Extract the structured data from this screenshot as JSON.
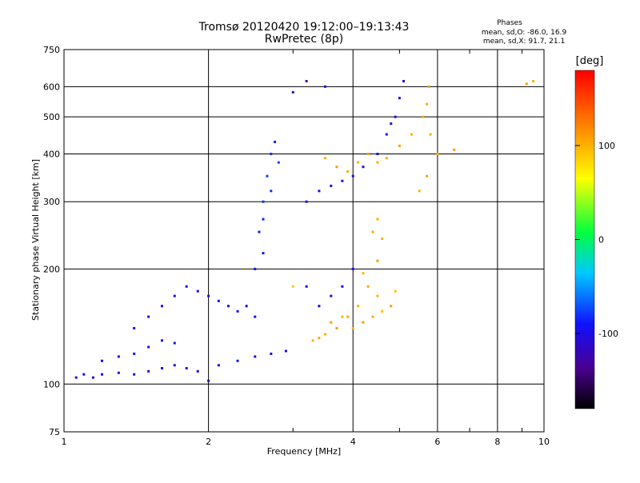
{
  "chart_data": {
    "type": "scatter",
    "title": "Tromsø 20120420 19:12:00–19:13:43",
    "subtitle": "RwPretec (8p)",
    "xlabel": "Frequency [MHz]",
    "ylabel": "Stationary phase Virtual Height [km]",
    "x_scale": "log",
    "y_scale": "log",
    "xlim": [
      1,
      10
    ],
    "ylim": [
      75,
      750
    ],
    "x_ticks": [
      1,
      2,
      4,
      6,
      8,
      10
    ],
    "y_ticks": [
      75,
      100,
      200,
      300,
      400,
      500,
      600,
      750
    ],
    "grid": true,
    "stats": {
      "heading": "Phases",
      "line_o": "mean, sd,O: -86.0, 16.9",
      "line_x": "mean, sd,X:  91.7, 21.1"
    },
    "colorbar": {
      "label": "[deg]",
      "ticks": [
        100,
        0,
        -100
      ],
      "range": [
        -180,
        180
      ]
    },
    "series": [
      {
        "values": [
          [
            1.06,
            104,
            -110
          ],
          [
            1.1,
            106,
            -105
          ],
          [
            1.15,
            104,
            -100
          ],
          [
            1.2,
            106,
            -95
          ],
          [
            1.3,
            107,
            -100
          ],
          [
            1.4,
            106,
            -105
          ],
          [
            1.5,
            108,
            -100
          ],
          [
            1.6,
            110,
            -95
          ],
          [
            1.7,
            112,
            -100
          ],
          [
            1.8,
            110,
            -105
          ],
          [
            1.9,
            108,
            -100
          ],
          [
            2.0,
            102,
            -110
          ],
          [
            1.2,
            115,
            -100
          ],
          [
            1.3,
            118,
            -95
          ],
          [
            1.4,
            120,
            -90
          ],
          [
            1.5,
            125,
            -95
          ],
          [
            1.6,
            130,
            -100
          ],
          [
            1.7,
            128,
            -95
          ],
          [
            1.4,
            140,
            -100
          ],
          [
            1.5,
            150,
            -95
          ],
          [
            1.6,
            160,
            -100
          ],
          [
            1.7,
            170,
            -95
          ],
          [
            1.8,
            180,
            -100
          ],
          [
            1.9,
            175,
            -95
          ],
          [
            2.0,
            170,
            -100
          ],
          [
            2.1,
            165,
            -95
          ],
          [
            2.2,
            160,
            -100
          ],
          [
            2.3,
            155,
            -95
          ],
          [
            2.4,
            160,
            -90
          ],
          [
            2.5,
            150,
            -95
          ],
          [
            2.1,
            112,
            -100
          ],
          [
            2.3,
            115,
            -95
          ],
          [
            2.5,
            118,
            -100
          ],
          [
            2.7,
            120,
            -95
          ],
          [
            2.9,
            122,
            -100
          ],
          [
            2.5,
            200,
            -90
          ],
          [
            2.55,
            250,
            -85
          ],
          [
            2.6,
            300,
            -80
          ],
          [
            2.65,
            350,
            -75
          ],
          [
            2.7,
            400,
            -80
          ],
          [
            2.75,
            430,
            -85
          ],
          [
            2.6,
            220,
            -90
          ],
          [
            2.6,
            270,
            -85
          ],
          [
            2.7,
            320,
            -80
          ],
          [
            2.8,
            380,
            -75
          ],
          [
            3.2,
            300,
            -100
          ],
          [
            3.4,
            320,
            -95
          ],
          [
            3.6,
            330,
            -100
          ],
          [
            3.8,
            340,
            -95
          ],
          [
            4.0,
            350,
            -100
          ],
          [
            4.2,
            370,
            -95
          ],
          [
            3.4,
            160,
            -100
          ],
          [
            3.6,
            170,
            -95
          ],
          [
            3.8,
            180,
            -100
          ],
          [
            4.0,
            200,
            -95
          ],
          [
            3.2,
            180,
            -100
          ],
          [
            4.5,
            400,
            -100
          ],
          [
            4.7,
            450,
            -95
          ],
          [
            4.9,
            500,
            -100
          ],
          [
            5.0,
            560,
            -95
          ],
          [
            5.1,
            620,
            -100
          ],
          [
            4.8,
            480,
            -95
          ],
          [
            3.2,
            620,
            -130
          ],
          [
            3.0,
            580,
            -120
          ],
          [
            3.5,
            600,
            -110
          ]
        ]
      },
      {
        "values": [
          [
            3.5,
            390,
            100
          ],
          [
            3.7,
            370,
            110
          ],
          [
            3.9,
            360,
            105
          ],
          [
            4.1,
            380,
            100
          ],
          [
            4.3,
            400,
            110
          ],
          [
            4.5,
            380,
            100
          ],
          [
            4.7,
            390,
            105
          ],
          [
            5.0,
            420,
            110
          ],
          [
            5.3,
            450,
            100
          ],
          [
            5.6,
            500,
            105
          ],
          [
            5.7,
            540,
            100
          ],
          [
            5.75,
            600,
            110
          ],
          [
            5.8,
            450,
            100
          ],
          [
            5.7,
            350,
            105
          ],
          [
            5.5,
            320,
            100
          ],
          [
            4.0,
            140,
            100
          ],
          [
            4.2,
            145,
            110
          ],
          [
            4.4,
            150,
            105
          ],
          [
            4.6,
            155,
            100
          ],
          [
            4.8,
            160,
            110
          ],
          [
            4.5,
            170,
            100
          ],
          [
            4.3,
            180,
            105
          ],
          [
            4.2,
            195,
            100
          ],
          [
            4.5,
            210,
            110
          ],
          [
            4.6,
            240,
            100
          ],
          [
            3.9,
            150,
            105
          ],
          [
            4.1,
            160,
            100
          ],
          [
            3.7,
            140,
            110
          ],
          [
            3.5,
            135,
            100
          ],
          [
            3.4,
            132,
            105
          ],
          [
            3.3,
            130,
            100
          ],
          [
            3.6,
            145,
            110
          ],
          [
            3.8,
            150,
            100
          ],
          [
            4.4,
            250,
            105
          ],
          [
            4.5,
            270,
            100
          ],
          [
            6.5,
            410,
            110
          ],
          [
            6.0,
            400,
            100
          ],
          [
            9.2,
            610,
            110
          ],
          [
            9.5,
            620,
            100
          ],
          [
            3.0,
            180,
            90
          ],
          [
            4.6,
            155,
            90
          ],
          [
            4.9,
            175,
            95
          ]
        ]
      }
    ]
  }
}
